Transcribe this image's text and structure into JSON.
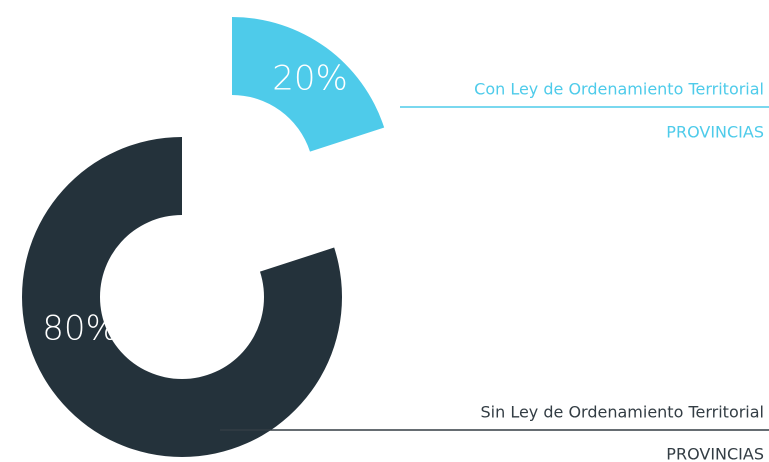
{
  "chart_data": {
    "type": "donut",
    "categories": [
      "Con Ley de Ordenamiento Territorial",
      "Sin Ley de Ordenamiento Territorial"
    ],
    "category_notes": [
      "PROVINCIAS",
      "PROVINCIAS"
    ],
    "values": [
      20,
      80
    ],
    "value_labels": [
      "20%",
      "80%"
    ],
    "colors": [
      "#4ecbea",
      "#24323b"
    ]
  }
}
